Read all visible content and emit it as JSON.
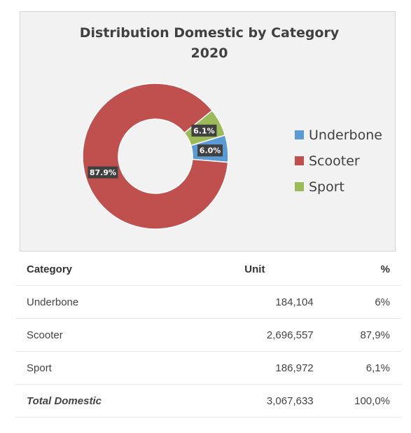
{
  "chart_data": {
    "type": "pie",
    "variant": "donut",
    "title": [
      "Distribution Domestic by Category",
      "2020"
    ],
    "categories": [
      "Underbone",
      "Scooter",
      "Sport"
    ],
    "values": [
      6.0,
      87.9,
      6.1
    ],
    "data_labels": [
      "6.0%",
      "87.9%",
      "6.1%"
    ],
    "colors": [
      "#5b9bd5",
      "#c0504d",
      "#9bbb59"
    ],
    "legend_position": "right",
    "legend": [
      "Underbone",
      "Scooter",
      "Sport"
    ]
  },
  "table": {
    "headers": [
      "Category",
      "Unit",
      "%"
    ],
    "rows": [
      {
        "category": "Underbone",
        "unit": "184,104",
        "pct": "6%"
      },
      {
        "category": "Scooter",
        "unit": "2,696,557",
        "pct": "87,9%"
      },
      {
        "category": "Sport",
        "unit": "186,972",
        "pct": "6,1%"
      }
    ],
    "total": {
      "category": "Total Domestic",
      "unit": "3,067,633",
      "pct": "100,0%"
    }
  }
}
